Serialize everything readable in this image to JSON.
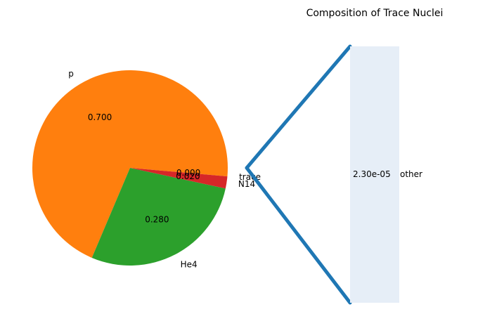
{
  "chart_data": [
    {
      "type": "pie",
      "categories": [
        "p",
        "He4",
        "N14",
        "trace"
      ],
      "values": [
        0.7,
        0.28,
        0.02,
        0.0
      ],
      "value_labels": [
        "0.700",
        "0.280",
        "0.020",
        "0.000"
      ],
      "category_labels": [
        "p",
        "He4",
        "N14",
        "trace"
      ],
      "colors": [
        "#ff7f0e",
        "#2ca02c",
        "#d62728",
        "#1f77b4"
      ]
    },
    {
      "type": "bar",
      "title": "Composition of Trace Nuclei",
      "categories": [
        "other"
      ],
      "values": [
        2.3e-05
      ],
      "value_labels": [
        "2.30e-05"
      ],
      "category_labels": [
        "other"
      ],
      "colors": [
        "#e6eef7"
      ],
      "connector_color": "#1f77b4"
    }
  ]
}
